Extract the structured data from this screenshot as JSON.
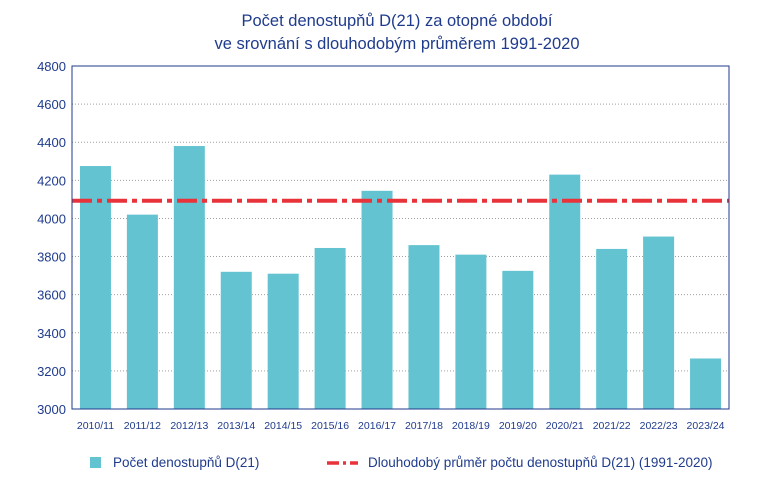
{
  "colors": {
    "bar": "#63c3d1",
    "average_line": "#e8333a",
    "axis": "#1f3b8c",
    "text": "#1f3b8c",
    "grid": "#a0a0a0"
  },
  "chart_data": {
    "type": "bar",
    "title_lines": [
      "Počet denostupňů D(21) za otopné období",
      "ve srovnání s dlouhodobým průměrem 1991-2020"
    ],
    "xlabel": "",
    "ylabel": "",
    "ylim": [
      3000,
      4800
    ],
    "yticks": [
      3000,
      3200,
      3400,
      3600,
      3800,
      4000,
      4200,
      4400,
      4600,
      4800
    ],
    "grid": "horizontal dotted",
    "legend_position": "bottom",
    "categories": [
      "2010/11",
      "2011/12",
      "2012/13",
      "2013/14",
      "2014/15",
      "2015/16",
      "2016/17",
      "2017/18",
      "2018/19",
      "2019/20",
      "2020/21",
      "2021/22",
      "2022/23",
      "2023/24"
    ],
    "series": [
      {
        "name": "Počet denostupňů D(21)",
        "type": "bar",
        "values": [
          4275,
          4020,
          4380,
          3720,
          3710,
          3845,
          4145,
          3860,
          3810,
          3725,
          4230,
          3840,
          3905,
          3265
        ]
      },
      {
        "name": "Dlouhodobý průměr počtu denostupňů D(21) (1991-2020)",
        "type": "line",
        "style": "dash-dot",
        "value": 4093
      }
    ]
  }
}
